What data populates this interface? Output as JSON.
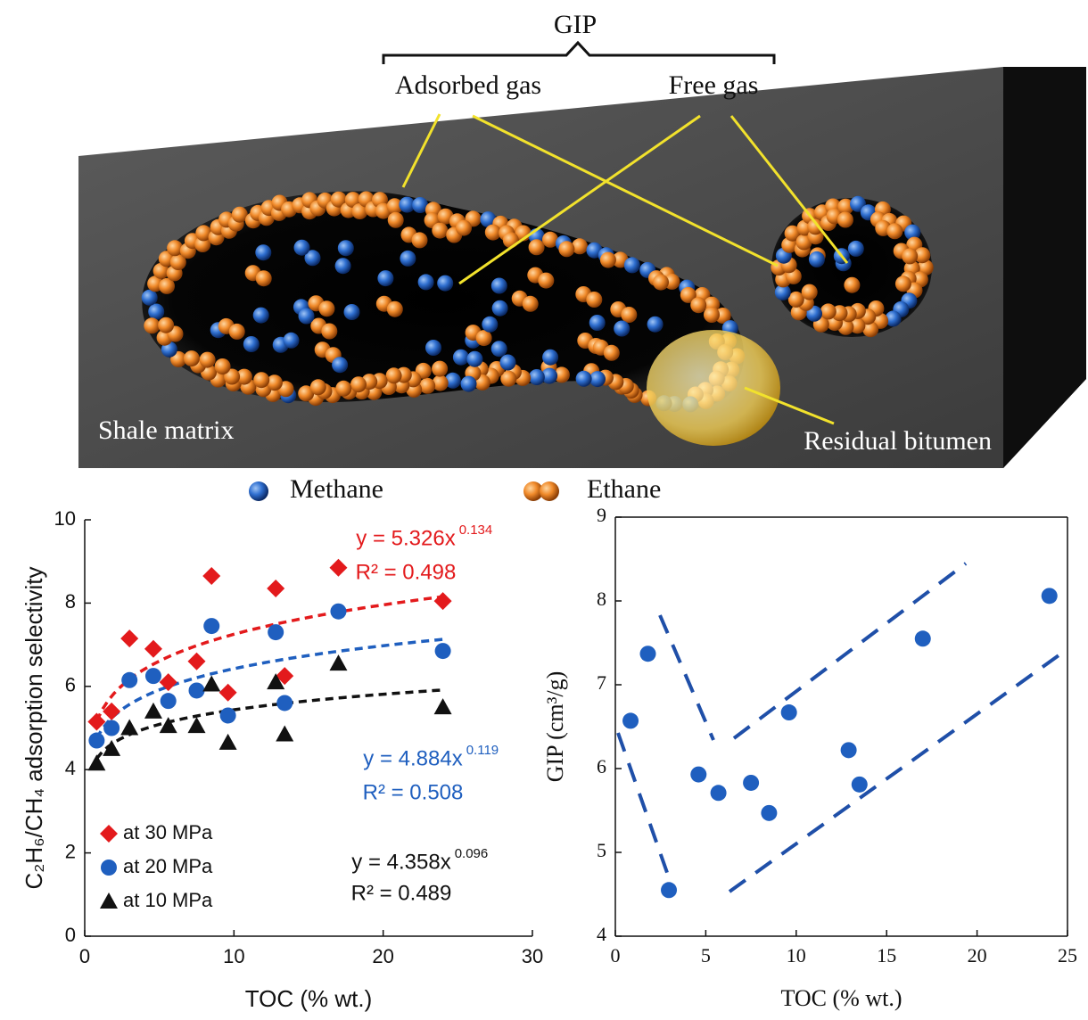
{
  "diagram": {
    "gip": "GIP",
    "adsorbed": "Adsorbed gas",
    "free": "Free gas",
    "matrix": "Shale matrix",
    "bitumen": "Residual bitumen",
    "legend": [
      "Methane",
      "Ethane"
    ]
  },
  "chart_data": [
    {
      "type": "scatter",
      "xlabel": "TOC (% wt.)",
      "ylabel": "C₂H₆/CH₄ adsorption selectivity",
      "xlim": [
        0,
        30
      ],
      "xticks": [
        0,
        10,
        20,
        30
      ],
      "ylim": [
        0,
        10
      ],
      "yticks": [
        0,
        2,
        4,
        6,
        8,
        10
      ],
      "x": [
        0.8,
        1.8,
        3,
        4.6,
        5.6,
        7.5,
        8.5,
        9.6,
        12.8,
        13.4,
        17,
        24
      ],
      "series": [
        {
          "name": "at 30 MPa",
          "color": "#e31a1c",
          "marker": "diamond",
          "values": [
            5.15,
            5.4,
            7.15,
            6.9,
            6.1,
            6.6,
            8.65,
            5.85,
            8.35,
            6.25,
            8.85,
            8.05
          ]
        },
        {
          "name": "at 20 MPa",
          "color": "#1f5fbf",
          "marker": "circle",
          "values": [
            4.7,
            5.0,
            6.15,
            6.25,
            5.65,
            5.9,
            7.45,
            5.3,
            7.3,
            5.6,
            7.8,
            6.85
          ]
        },
        {
          "name": "at 10 MPa",
          "color": "#111111",
          "marker": "triangle",
          "values": [
            4.15,
            4.5,
            5.0,
            5.4,
            5.05,
            5.05,
            6.05,
            4.65,
            6.1,
            4.85,
            6.55,
            5.5
          ]
        }
      ],
      "fits": [
        {
          "equation": "y = 5.326x",
          "coefficient": 5.326,
          "power": 0.134,
          "r2_label": "R² = 0.498",
          "color": "#e31a1c"
        },
        {
          "equation": "y = 4.884x",
          "coefficient": 4.884,
          "power": 0.119,
          "r2_label": "R² = 0.508",
          "color": "#1f5fbf"
        },
        {
          "equation": "y = 4.358x",
          "coefficient": 4.358,
          "power": 0.096,
          "r2_label": "R² = 0.489",
          "color": "#111111"
        }
      ],
      "legend": "lower left",
      "box": false
    },
    {
      "type": "scatter",
      "xlabel": "TOC (% wt.)",
      "ylabel": "GIP (cm³/g)",
      "xlim": [
        0,
        25
      ],
      "xticks": [
        0,
        5,
        10,
        15,
        20,
        25
      ],
      "ylim": [
        4,
        9
      ],
      "yticks": [
        4,
        5,
        6,
        7,
        8,
        9
      ],
      "x": [
        0.84,
        1.8,
        2.96,
        4.6,
        5.7,
        7.5,
        8.5,
        9.6,
        12.9,
        13.5,
        17,
        24
      ],
      "series": [
        {
          "color": "#1f5fbf",
          "marker": "circle",
          "values": [
            6.57,
            7.37,
            4.55,
            5.93,
            5.71,
            5.83,
            5.47,
            6.67,
            6.22,
            5.81,
            7.55,
            8.06
          ]
        }
      ],
      "box": true
    }
  ]
}
